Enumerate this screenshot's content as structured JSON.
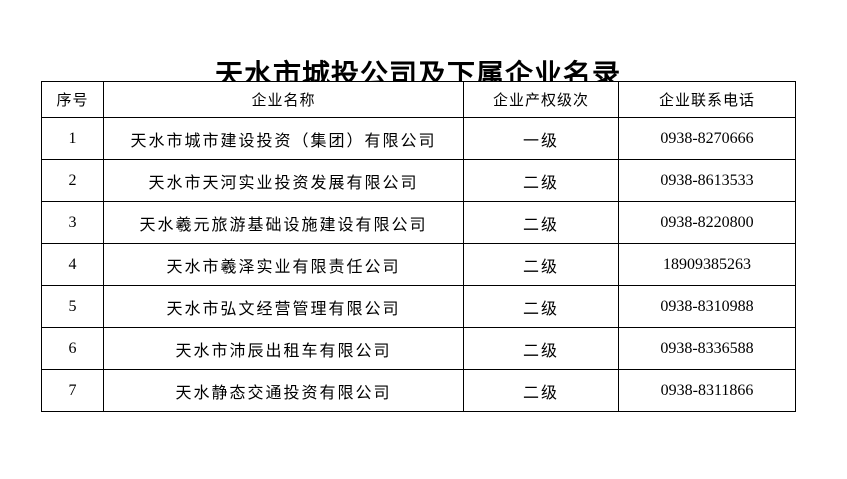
{
  "page": {
    "title": "天水市城投公司及下属企业名录"
  },
  "table": {
    "headers": {
      "no": "序号",
      "name": "企业名称",
      "level": "企业产权级次",
      "phone": "企业联系电话"
    },
    "rows": [
      {
        "no": "1",
        "name": "天水市城市建设投资（集团）有限公司",
        "level": "一级",
        "phone": "0938-8270666"
      },
      {
        "no": "2",
        "name": "天水市天河实业投资发展有限公司",
        "level": "二级",
        "phone": "0938-8613533"
      },
      {
        "no": "3",
        "name": "天水羲元旅游基础设施建设有限公司",
        "level": "二级",
        "phone": "0938-8220800"
      },
      {
        "no": "4",
        "name": "天水市羲泽实业有限责任公司",
        "level": "二级",
        "phone": "18909385263"
      },
      {
        "no": "5",
        "name": "天水市弘文经营管理有限公司",
        "level": "二级",
        "phone": "0938-8310988"
      },
      {
        "no": "6",
        "name": "天水市沛辰出租车有限公司",
        "level": "二级",
        "phone": "0938-8336588"
      },
      {
        "no": "7",
        "name": "天水静态交通投资有限公司",
        "level": "二级",
        "phone": "0938-8311866"
      }
    ]
  },
  "colors": {
    "text": "#000000",
    "border": "#000000",
    "background": "#ffffff"
  }
}
